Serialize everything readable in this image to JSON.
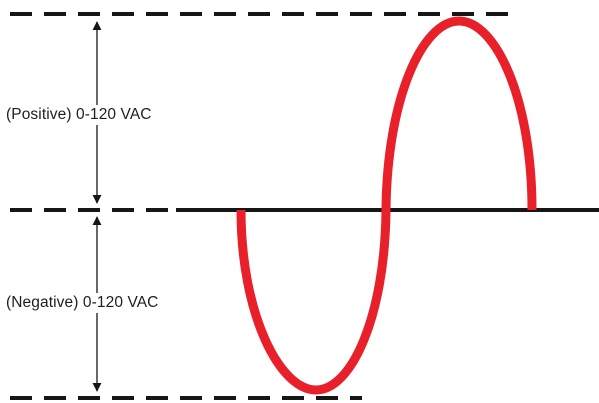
{
  "labels": {
    "positive": "(Positive) 0-120 VAC",
    "negative": "(Negative) 0-120 VAC"
  },
  "colors": {
    "wave": "#e8202a",
    "lines": "#161616",
    "background": "#ffffff"
  }
}
